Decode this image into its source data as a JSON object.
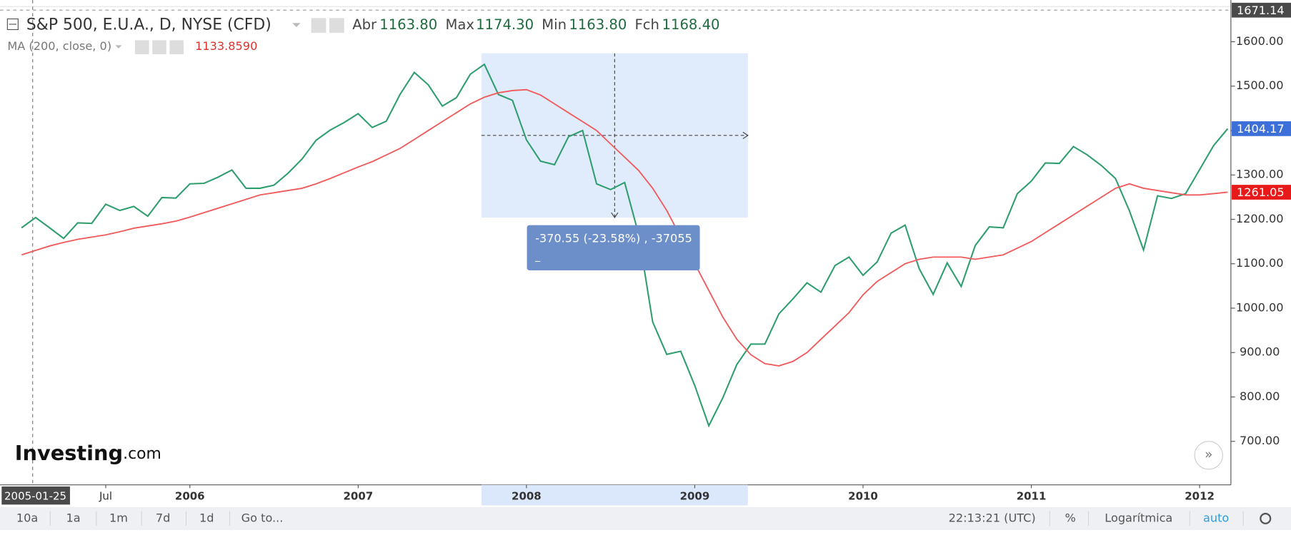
{
  "chart_data": {
    "type": "line",
    "title": "S&P 500, E.U.A., D, NYSE (CFD)",
    "header_stats": [
      {
        "label": "Abr",
        "value": "1163.80"
      },
      {
        "label": "Max",
        "value": "1174.30"
      },
      {
        "label": "Min",
        "value": "1163.80"
      },
      {
        "label": "Fch",
        "value": "1168.40"
      }
    ],
    "indicator_value": "1133.8590",
    "x": [
      "2005-01",
      "2005-02",
      "2005-03",
      "2005-04",
      "2005-05",
      "2005-06",
      "2005-07",
      "2005-08",
      "2005-09",
      "2005-10",
      "2005-11",
      "2005-12",
      "2006-01",
      "2006-02",
      "2006-03",
      "2006-04",
      "2006-05",
      "2006-06",
      "2006-07",
      "2006-08",
      "2006-09",
      "2006-10",
      "2006-11",
      "2006-12",
      "2007-01",
      "2007-02",
      "2007-03",
      "2007-04",
      "2007-05",
      "2007-06",
      "2007-07",
      "2007-08",
      "2007-09",
      "2007-10",
      "2007-11",
      "2007-12",
      "2008-01",
      "2008-02",
      "2008-03",
      "2008-04",
      "2008-05",
      "2008-06",
      "2008-07",
      "2008-08",
      "2008-09",
      "2008-10",
      "2008-11",
      "2008-12",
      "2009-01",
      "2009-02",
      "2009-03",
      "2009-04",
      "2009-05",
      "2009-06",
      "2009-07",
      "2009-08",
      "2009-09",
      "2009-10",
      "2009-11",
      "2009-12",
      "2010-01",
      "2010-02",
      "2010-03",
      "2010-04",
      "2010-05",
      "2010-06",
      "2010-07",
      "2010-08",
      "2010-09",
      "2010-10",
      "2010-11",
      "2010-12",
      "2011-01",
      "2011-02",
      "2011-03",
      "2011-04",
      "2011-05",
      "2011-06",
      "2011-07",
      "2011-08",
      "2011-09",
      "2011-10",
      "2011-11",
      "2011-12",
      "2012-01",
      "2012-02",
      "2012-03"
    ],
    "series": [
      {
        "color": "#2f9e6e",
        "values": [
          1181,
          1204,
          1181,
          1157,
          1192,
          1191,
          1234,
          1220,
          1229,
          1207,
          1249,
          1248,
          1280,
          1281,
          1295,
          1311,
          1270,
          1270,
          1277,
          1304,
          1336,
          1378,
          1401,
          1418,
          1438,
          1407,
          1421,
          1482,
          1531,
          1503,
          1455,
          1474,
          1527,
          1549,
          1481,
          1468,
          1379,
          1331,
          1323,
          1386,
          1400,
          1280,
          1267,
          1283,
          1166,
          969,
          896,
          903,
          826,
          735,
          798,
          873,
          919,
          919,
          987,
          1021,
          1057,
          1036,
          1096,
          1115,
          1074,
          1104,
          1169,
          1187,
          1089,
          1031,
          1102,
          1049,
          1141,
          1183,
          1181,
          1258,
          1286,
          1327,
          1326,
          1364,
          1345,
          1321,
          1292,
          1219,
          1131,
          1253,
          1247,
          1258,
          1312,
          1366,
          1404.17
        ]
      },
      {
        "name": "MA (200, close, 0)",
        "color": "#f05a5a",
        "values": [
          1120,
          1130,
          1140,
          1148,
          1155,
          1160,
          1165,
          1172,
          1180,
          1185,
          1190,
          1196,
          1205,
          1215,
          1225,
          1235,
          1245,
          1255,
          1260,
          1265,
          1270,
          1280,
          1292,
          1305,
          1318,
          1330,
          1345,
          1360,
          1380,
          1400,
          1420,
          1440,
          1460,
          1475,
          1485,
          1490,
          1492,
          1480,
          1460,
          1440,
          1420,
          1400,
          1370,
          1340,
          1310,
          1270,
          1220,
          1160,
          1100,
          1040,
          980,
          930,
          895,
          875,
          870,
          880,
          900,
          930,
          960,
          990,
          1030,
          1060,
          1080,
          1100,
          1110,
          1115,
          1115,
          1115,
          1110,
          1115,
          1120,
          1135,
          1150,
          1170,
          1190,
          1210,
          1230,
          1250,
          1270,
          1280,
          1270,
          1265,
          1260,
          1255,
          1255,
          1258,
          1261.05
        ]
      }
    ],
    "xlim": [
      "2004-11-15",
      "2012-03-08"
    ],
    "xticks": [
      {
        "value": "2005-07",
        "label": "Jul"
      },
      {
        "value": "2006-01",
        "label": "2006"
      },
      {
        "value": "2007-01",
        "label": "2007"
      },
      {
        "value": "2008-01",
        "label": "2008"
      },
      {
        "value": "2009-01",
        "label": "2009"
      },
      {
        "value": "2010-01",
        "label": "2010"
      },
      {
        "value": "2011-01",
        "label": "2011"
      },
      {
        "value": "2012-01",
        "label": "2012"
      }
    ],
    "ylim": [
      602,
      1694
    ],
    "yticks": [
      {
        "value": 700,
        "label": "700.00"
      },
      {
        "value": 800,
        "label": "800.00"
      },
      {
        "value": 900,
        "label": "900.00"
      },
      {
        "value": 1000,
        "label": "1000.00"
      },
      {
        "value": 1100,
        "label": "1100.00"
      },
      {
        "value": 1200,
        "label": "1200.00"
      },
      {
        "value": 1300,
        "label": "1300.00"
      },
      {
        "value": 1400,
        "label": "1400.00"
      },
      {
        "value": 1500,
        "label": "1500.00"
      },
      {
        "value": 1600,
        "label": "1600.00"
      }
    ],
    "crosshair": {
      "x": "2005-01-25",
      "y": 1671.14
    },
    "measure": {
      "x": [
        "2007-09-25",
        "2009-04-25"
      ],
      "y": [
        1574,
        1204
      ],
      "label": "-370.55 (-23.58%) , -37055",
      "sublabel": "_"
    }
  },
  "toolbar": {
    "ranges": [
      "10a",
      "1a",
      "1m",
      "7d",
      "1d"
    ],
    "goto": "Go to...",
    "clock": "22:13:21 (UTC)",
    "percent": "%",
    "log": "Logarítmica",
    "auto": "auto"
  },
  "logo": {
    "brand": "Investing",
    "suffix": ".com"
  }
}
